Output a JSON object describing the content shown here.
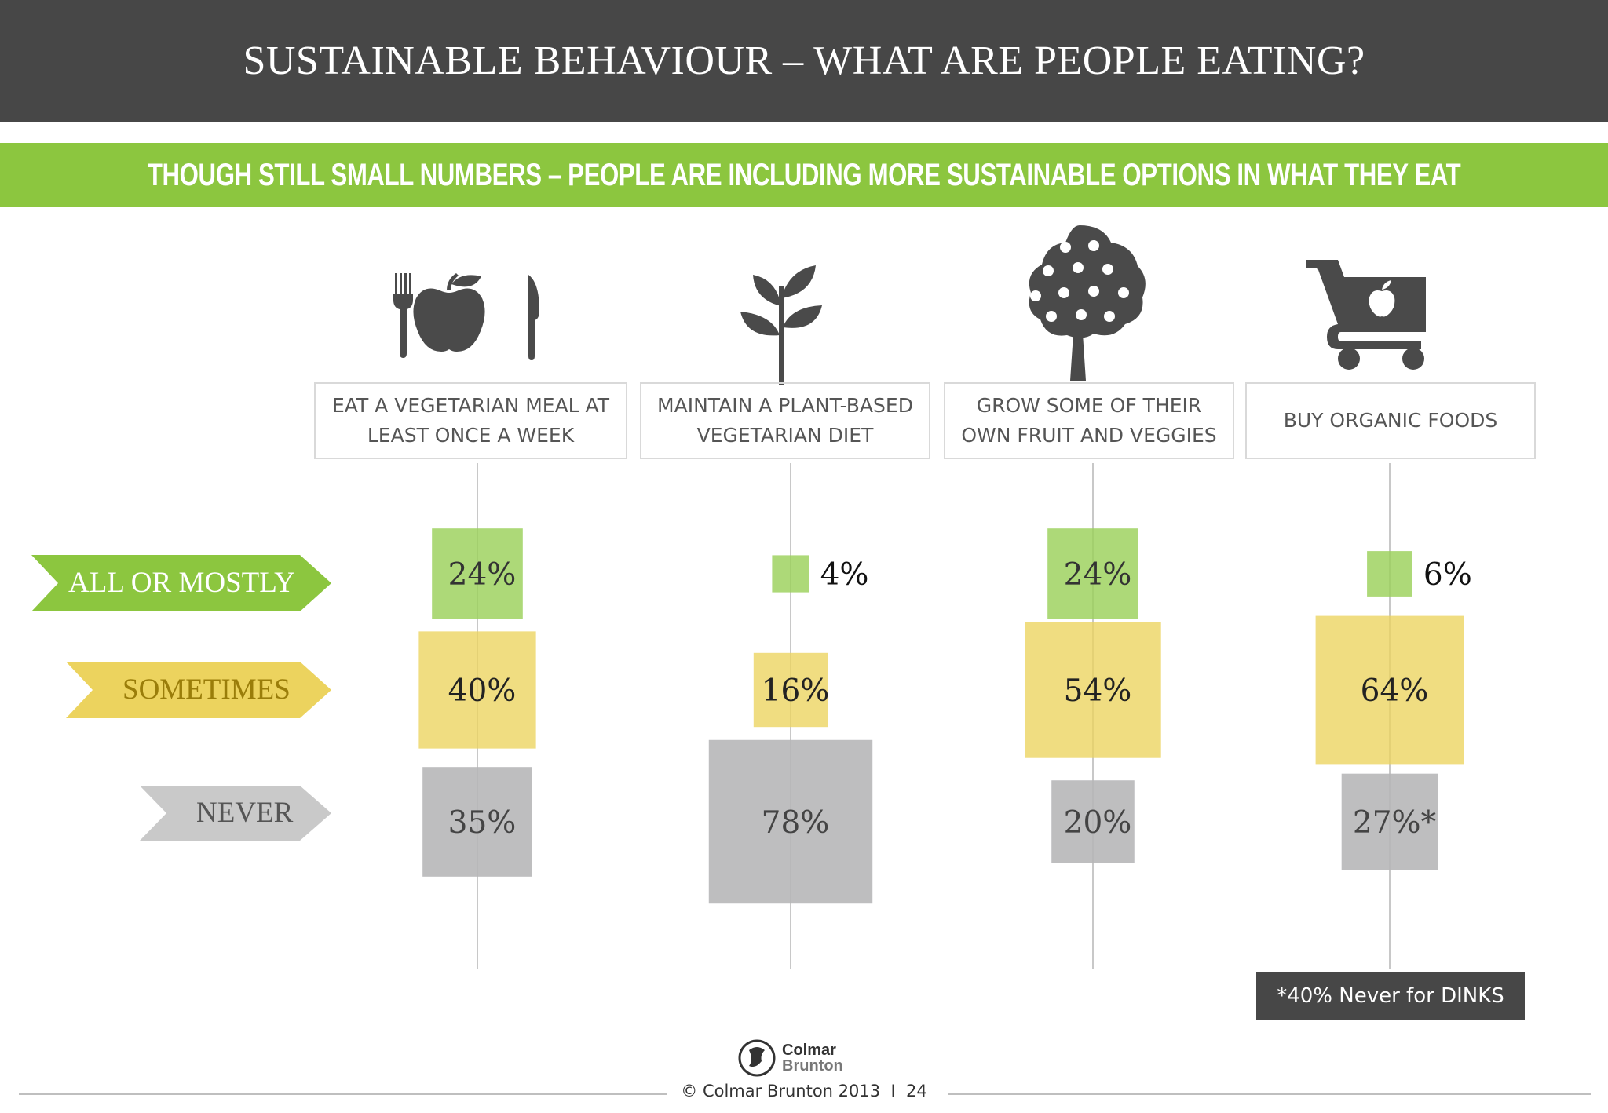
{
  "header": {
    "title": "SUSTAINABLE BEHAVIOUR – WHAT ARE PEOPLE EATING?"
  },
  "banner": {
    "text": "THOUGH STILL SMALL NUMBERS – PEOPLE ARE INCLUDING MORE SUSTAINABLE OPTIONS IN WHAT THEY EAT"
  },
  "icons": [
    "fork-apple-knife-icon",
    "sprout-icon",
    "fruit-tree-icon",
    "shopping-cart-icon"
  ],
  "colors": {
    "green": "#8cc63f",
    "green_box": "#9bd15a",
    "yellow": "#ecd35e",
    "gray": "#b5b5b6",
    "dark": "#474747",
    "gold_text": "#9a7d0a"
  },
  "chart_data": {
    "type": "bubble-grid",
    "categories": [
      "EAT A VEGETARIAN MEAL AT LEAST ONCE A WEEK",
      "MAINTAIN A PLANT-BASED VEGETARIAN DIET",
      "GROW SOME OF THEIR OWN FRUIT AND VEGGIES",
      "BUY ORGANIC FOODS"
    ],
    "series": [
      {
        "name": "ALL OR MOSTLY",
        "values": [
          24,
          4,
          24,
          6
        ],
        "labels": [
          "24%",
          "4%",
          "24%",
          "6%"
        ]
      },
      {
        "name": "SOMETIMES",
        "values": [
          40,
          16,
          54,
          64
        ],
        "labels": [
          "40%",
          "16%",
          "54%",
          "64%"
        ]
      },
      {
        "name": "NEVER",
        "values": [
          35,
          78,
          20,
          27
        ],
        "labels": [
          "35%",
          "78%",
          "20%",
          "27%*"
        ]
      }
    ]
  },
  "note": "*40% Never for DINKS",
  "footer": {
    "copyright": "© Colmar Brunton 2013  I  24",
    "logo_line1": "Colmar",
    "logo_line2": "Brunton"
  }
}
